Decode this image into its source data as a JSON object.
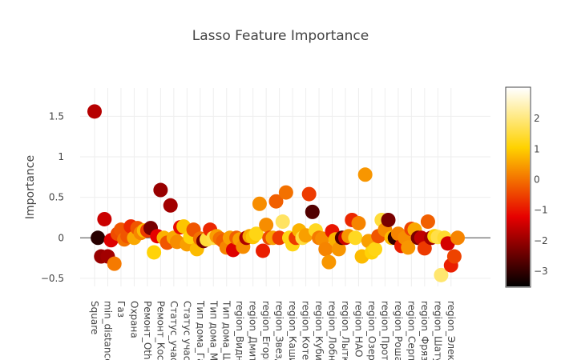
{
  "chart_data": {
    "type": "scatter",
    "title": "Lasso Feature Importance",
    "xlabel": "",
    "ylabel": "Importance",
    "ylim": [
      -0.6,
      1.85
    ],
    "yticks": [
      -0.5,
      0,
      0.5,
      1,
      1.5
    ],
    "ytick_labels": [
      "−0.5",
      "0",
      "0.5",
      "1",
      "1.5"
    ],
    "grid": true,
    "colorscale": {
      "name": "Hot",
      "range": [
        -3.5,
        3
      ],
      "ticks": [
        -3,
        -2,
        -1,
        0,
        1,
        2
      ],
      "tick_labels": [
        "−3",
        "−2",
        "−1",
        "0",
        "1",
        "2"
      ],
      "colors": [
        "#000000",
        "#e60000",
        "#ffd200",
        "#ffffff"
      ]
    },
    "x_labels": [
      "Square",
      "min_distance",
      "Газ",
      "Охрана",
      "Ремонт_Oth",
      "Ремонт_Косм",
      "Статус_участ",
      "Статус участ",
      "Тип дома_Га",
      "Тип дома_Мо",
      "Тип дома_Щ",
      "region_Видно",
      "region_Дмитр",
      "region_Егорь",
      "region_Звезд",
      "region_Каши",
      "region_Котел",
      "region_Кубин",
      "region_Лобн",
      "region_Лыткл",
      "region_НАО (",
      "region_Озер",
      "region_Прот",
      "region_Роша",
      "region_Серп",
      "region_Фряз",
      "region_Шату",
      "region_Элект"
    ],
    "points": [
      [
        1,
        1.56,
        -1.7
      ],
      [
        2,
        0.0,
        -3.1
      ],
      [
        3,
        -0.23,
        -2.0
      ],
      [
        4,
        0.23,
        -1.5
      ],
      [
        5,
        -0.23,
        -1.9
      ],
      [
        6,
        -0.03,
        -1.3
      ],
      [
        7,
        -0.32,
        0.1
      ],
      [
        8,
        0.05,
        -0.4
      ],
      [
        9,
        0.1,
        -0.3
      ],
      [
        10,
        -0.02,
        0.0
      ],
      [
        11,
        0.02,
        -0.3
      ],
      [
        12,
        0.14,
        -0.8
      ],
      [
        13,
        0.0,
        0.6
      ],
      [
        14,
        0.12,
        -0.3
      ],
      [
        15,
        0.06,
        0.2
      ],
      [
        16,
        0.09,
        0.8
      ],
      [
        17,
        0.09,
        -0.6
      ],
      [
        18,
        0.12,
        -2.3
      ],
      [
        19,
        -0.18,
        1.1
      ],
      [
        20,
        0.02,
        -1.2
      ],
      [
        21,
        0.59,
        -2.0
      ],
      [
        22,
        0.0,
        0.7
      ],
      [
        23,
        -0.06,
        -0.3
      ],
      [
        24,
        0.4,
        -1.9
      ],
      [
        25,
        0.0,
        0.6
      ],
      [
        26,
        -0.05,
        0.3
      ],
      [
        27,
        0.13,
        -1.1
      ],
      [
        28,
        0.14,
        0.9
      ],
      [
        29,
        -0.08,
        0.5
      ],
      [
        30,
        0.01,
        1.1
      ],
      [
        31,
        0.1,
        -0.3
      ],
      [
        32,
        -0.14,
        0.8
      ],
      [
        33,
        -0.01,
        0.0
      ],
      [
        34,
        -0.04,
        -2.3
      ],
      [
        35,
        -0.02,
        1.5
      ],
      [
        36,
        0.1,
        -0.8
      ],
      [
        37,
        0.0,
        1.6
      ],
      [
        38,
        0.02,
        0.5
      ],
      [
        39,
        -0.01,
        0.0
      ],
      [
        40,
        -0.04,
        -0.2
      ],
      [
        41,
        -0.12,
        0.2
      ],
      [
        42,
        0.0,
        0.5
      ],
      [
        43,
        -0.15,
        -1.3
      ],
      [
        44,
        0.0,
        -0.2
      ],
      [
        45,
        -0.02,
        0.5
      ],
      [
        46,
        -0.11,
        0.3
      ],
      [
        47,
        0.0,
        -1.8
      ],
      [
        48,
        0.02,
        0.6
      ],
      [
        49,
        0.01,
        0.9
      ],
      [
        50,
        0.05,
        1.2
      ],
      [
        51,
        0.42,
        0.3
      ],
      [
        52,
        -0.16,
        -0.9
      ],
      [
        53,
        0.16,
        0.3
      ],
      [
        54,
        0.0,
        -0.4
      ],
      [
        55,
        0.0,
        0.5
      ],
      [
        56,
        0.45,
        -0.2
      ],
      [
        57,
        0.0,
        -0.6
      ],
      [
        58,
        0.2,
        1.8
      ],
      [
        59,
        0.56,
        0.0
      ],
      [
        60,
        0.0,
        1.2
      ],
      [
        61,
        -0.08,
        1.2
      ],
      [
        62,
        0.0,
        -0.6
      ],
      [
        63,
        0.09,
        0.7
      ],
      [
        64,
        0.0,
        1.5
      ],
      [
        65,
        0.03,
        0.5
      ],
      [
        66,
        0.54,
        -0.6
      ],
      [
        67,
        0.32,
        -2.7
      ],
      [
        68,
        0.09,
        1.3
      ],
      [
        69,
        0.0,
        0.1
      ],
      [
        70,
        -0.01,
        0.3
      ],
      [
        71,
        -0.14,
        0.2
      ],
      [
        72,
        -0.3,
        0.4
      ],
      [
        73,
        0.08,
        -1.0
      ],
      [
        74,
        -0.02,
        0.7
      ],
      [
        75,
        -0.14,
        0.4
      ],
      [
        76,
        0.0,
        -2.7
      ],
      [
        77,
        0.0,
        -1.5
      ],
      [
        78,
        0.02,
        0.4
      ],
      [
        79,
        0.22,
        -0.8
      ],
      [
        80,
        0.0,
        1.3
      ],
      [
        81,
        0.18,
        0.2
      ],
      [
        82,
        -0.23,
        0.8
      ],
      [
        83,
        0.78,
        0.4
      ],
      [
        84,
        -0.04,
        0.5
      ],
      [
        85,
        -0.18,
        1.1
      ],
      [
        86,
        -0.14,
        1.2
      ],
      [
        87,
        0.02,
        -0.3
      ],
      [
        88,
        0.22,
        1.5
      ],
      [
        89,
        0.1,
        0.3
      ],
      [
        90,
        0.22,
        -2.3
      ],
      [
        91,
        0.0,
        0.8
      ],
      [
        92,
        0.0,
        -3.0
      ],
      [
        93,
        0.05,
        0.2
      ],
      [
        94,
        -0.1,
        -0.9
      ],
      [
        95,
        0.0,
        0.3
      ],
      [
        96,
        -0.12,
        0.4
      ],
      [
        97,
        0.11,
        -0.5
      ],
      [
        98,
        0.1,
        0.6
      ],
      [
        99,
        0.0,
        -2.3
      ],
      [
        100,
        0.0,
        -1.6
      ],
      [
        101,
        -0.13,
        -0.6
      ],
      [
        102,
        0.2,
        -0.2
      ],
      [
        103,
        0.0,
        -1.9
      ],
      [
        104,
        0.02,
        1.1
      ],
      [
        105,
        0.01,
        1.6
      ],
      [
        106,
        -0.46,
        1.9
      ],
      [
        107,
        0.0,
        1.4
      ],
      [
        108,
        -0.07,
        -1.4
      ],
      [
        109,
        -0.34,
        -0.9
      ],
      [
        110,
        -0.23,
        -0.5
      ],
      [
        111,
        0.0,
        0.2
      ]
    ]
  }
}
